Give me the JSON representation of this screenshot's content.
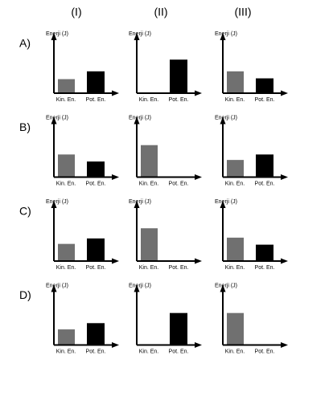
{
  "columns": [
    "(I)",
    "(II)",
    "(III)"
  ],
  "rows": [
    "A)",
    "B)",
    "C)",
    "D)"
  ],
  "chart_data": [
    {
      "type": "bar",
      "y_label": "Enerji (J)",
      "categories": [
        "Kin. En.",
        "Pot. En."
      ],
      "values": [
        18,
        28
      ],
      "colors": [
        "#707070",
        "#000000"
      ],
      "ylim": [
        0,
        70
      ]
    },
    {
      "type": "bar",
      "y_label": "Enerji (J)",
      "categories": [
        "Kin. En.",
        "Pot. En."
      ],
      "values": [
        1,
        43
      ],
      "colors": [
        "#707070",
        "#000000"
      ],
      "ylim": [
        0,
        70
      ]
    },
    {
      "type": "bar",
      "y_label": "Enerji (J)",
      "categories": [
        "Kin. En.",
        "Pot. En."
      ],
      "values": [
        28,
        19
      ],
      "colors": [
        "#707070",
        "#000000"
      ],
      "ylim": [
        0,
        70
      ]
    },
    {
      "type": "bar",
      "y_label": "Enerji (J)",
      "categories": [
        "Kin. En.",
        "Pot. En."
      ],
      "values": [
        29,
        20
      ],
      "colors": [
        "#707070",
        "#000000"
      ],
      "ylim": [
        0,
        70
      ]
    },
    {
      "type": "bar",
      "y_label": "Enerji (J)",
      "categories": [
        "Kin. En.",
        "Pot. En."
      ],
      "values": [
        41,
        1
      ],
      "colors": [
        "#707070",
        "#000000"
      ],
      "ylim": [
        0,
        70
      ]
    },
    {
      "type": "bar",
      "y_label": "Enerji (J)",
      "categories": [
        "Kin. En.",
        "Pot. En."
      ],
      "values": [
        22,
        29
      ],
      "colors": [
        "#707070",
        "#000000"
      ],
      "ylim": [
        0,
        70
      ]
    },
    {
      "type": "bar",
      "y_label": "Enerji (J)",
      "categories": [
        "Kin. En.",
        "Pot. En."
      ],
      "values": [
        22,
        29
      ],
      "colors": [
        "#707070",
        "#000000"
      ],
      "ylim": [
        0,
        70
      ]
    },
    {
      "type": "bar",
      "y_label": "Enerji (J)",
      "categories": [
        "Kin. En.",
        "Pot. En."
      ],
      "values": [
        42,
        1
      ],
      "colors": [
        "#707070",
        "#000000"
      ],
      "ylim": [
        0,
        70
      ]
    },
    {
      "type": "bar",
      "y_label": "Enerji (J)",
      "categories": [
        "Kin. En.",
        "Pot. En."
      ],
      "values": [
        30,
        21
      ],
      "colors": [
        "#707070",
        "#000000"
      ],
      "ylim": [
        0,
        70
      ]
    },
    {
      "type": "bar",
      "y_label": "Enerji (J)",
      "categories": [
        "Kin. En.",
        "Pot. En."
      ],
      "values": [
        20,
        28
      ],
      "colors": [
        "#707070",
        "#000000"
      ],
      "ylim": [
        0,
        70
      ]
    },
    {
      "type": "bar",
      "y_label": "Enerji (J)",
      "categories": [
        "Kin. En.",
        "Pot. En."
      ],
      "values": [
        1,
        41
      ],
      "colors": [
        "#707070",
        "#000000"
      ],
      "ylim": [
        0,
        70
      ]
    },
    {
      "type": "bar",
      "y_label": "Enerji (J)",
      "categories": [
        "Kin. En.",
        "Pot. En."
      ],
      "values": [
        41,
        1
      ],
      "colors": [
        "#707070",
        "#000000"
      ],
      "ylim": [
        0,
        70
      ]
    }
  ]
}
